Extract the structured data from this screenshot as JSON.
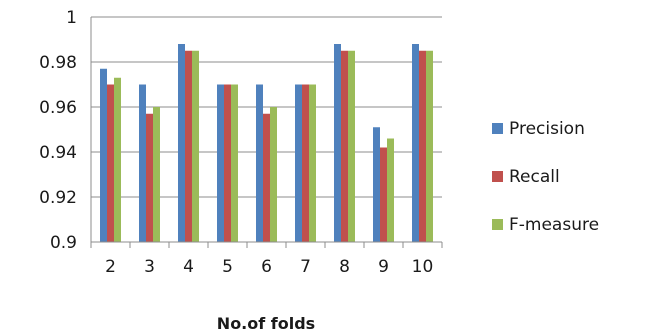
{
  "chart_data": {
    "type": "bar",
    "title": "",
    "xlabel": "No.of folds",
    "ylabel": "",
    "categories": [
      "2",
      "3",
      "4",
      "5",
      "6",
      "7",
      "8",
      "9",
      "10"
    ],
    "ylim": [
      0.9,
      1.0
    ],
    "yticks": [
      "0.9",
      "0.92",
      "0.94",
      "0.96",
      "0.98",
      "1"
    ],
    "grid": true,
    "legend_position": "right",
    "series": [
      {
        "name": "Precision",
        "color": "#4f81bd",
        "values": [
          0.977,
          0.97,
          0.988,
          0.97,
          0.97,
          0.97,
          0.988,
          0.951,
          0.988
        ]
      },
      {
        "name": "Recall",
        "color": "#c0504d",
        "values": [
          0.97,
          0.957,
          0.985,
          0.97,
          0.957,
          0.97,
          0.985,
          0.942,
          0.985
        ]
      },
      {
        "name": "F-measure",
        "color": "#9bbb59",
        "values": [
          0.973,
          0.96,
          0.985,
          0.97,
          0.96,
          0.97,
          0.985,
          0.946,
          0.985
        ]
      }
    ]
  }
}
